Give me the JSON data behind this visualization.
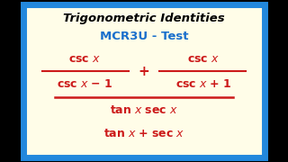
{
  "title1": "Trigonometric Identities",
  "title2": "MCR3U - Test",
  "title1_color": "#000000",
  "title2_color": "#1a6fcc",
  "math_color": "#cc1a1a",
  "bg_color": "#fffde8",
  "outer_color": "#000000",
  "border_color": "#2288dd",
  "border_width": 2.5,
  "figwidth": 3.2,
  "figheight": 1.8,
  "dpi": 100
}
